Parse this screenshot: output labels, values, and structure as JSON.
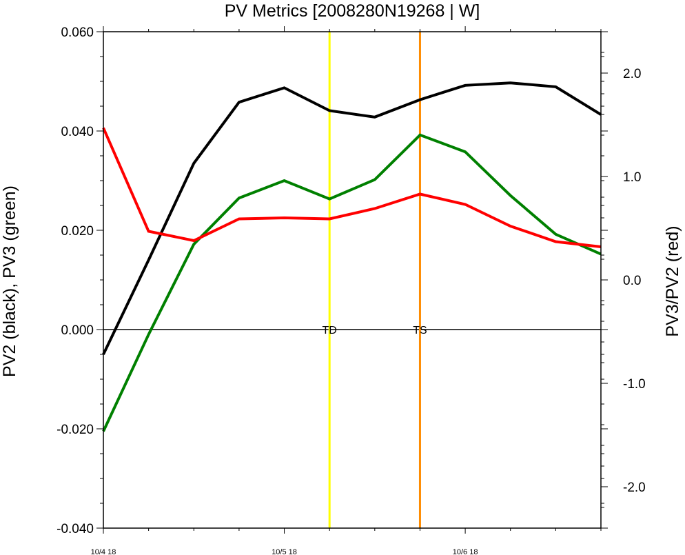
{
  "chart_data": {
    "type": "line",
    "title": "PV Metrics [2008280N19268 | W]",
    "y_left_label": "PV2 (black), PV3 (green)",
    "y_right_label": "PV3/PV2 (red)",
    "y_left_range": [
      -0.04,
      0.06
    ],
    "y_right_range": [
      -2.4,
      2.4
    ],
    "y_left_ticks": [
      "-0.040",
      "-0.020",
      "0.000",
      "0.020",
      "0.040",
      "0.060"
    ],
    "y_right_ticks": [
      "-2.0",
      "-1.0",
      "0.0",
      "1.0",
      "2.0"
    ],
    "x_tick_labels": [
      "10/4 18",
      "10/5 18",
      "10/6 18"
    ],
    "x": [
      "10/4 18",
      "10/5 00",
      "10/5 06",
      "10/5 12",
      "10/5 18",
      "10/6 00",
      "10/6 06",
      "10/6 12",
      "10/6 18",
      "10/7 00",
      "10/7 06",
      "10/7 12"
    ],
    "series": [
      {
        "name": "PV2",
        "axis": "left",
        "color": "#000000",
        "values": [
          -0.005,
          0.014,
          0.0335,
          0.0458,
          0.0487,
          0.0441,
          0.0428,
          0.0463,
          0.0492,
          0.0497,
          0.0489,
          0.0433
        ]
      },
      {
        "name": "PV3",
        "axis": "left",
        "color": "#008000",
        "values": [
          -0.0205,
          -0.001,
          0.0172,
          0.0265,
          0.03,
          0.0263,
          0.0302,
          0.0392,
          0.0358,
          0.027,
          0.0192,
          0.0152
        ]
      },
      {
        "name": "PV3/PV2",
        "axis": "right",
        "color": "#ff0000",
        "values": [
          1.47,
          0.47,
          0.38,
          0.59,
          0.6,
          0.59,
          0.69,
          0.83,
          0.73,
          0.52,
          0.37,
          0.32
        ]
      }
    ],
    "vertical_lines": [
      {
        "label": "TD",
        "x_index": 5,
        "color": "#ffff00"
      },
      {
        "label": "TS",
        "x_index": 7,
        "color": "#ff8c00"
      }
    ],
    "zero_line": true,
    "grid": false
  }
}
